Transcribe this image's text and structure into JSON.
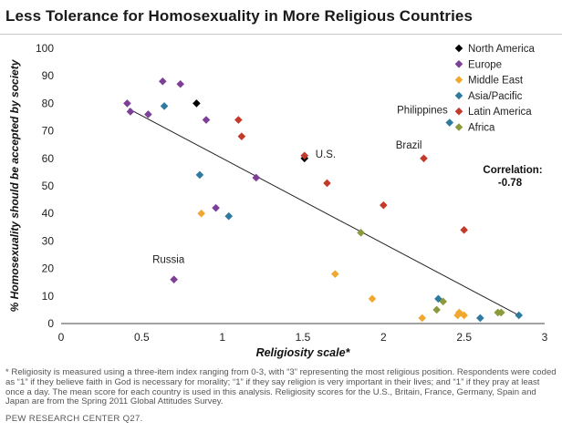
{
  "chart_data": {
    "type": "scatter",
    "title": "Less Tolerance for Homosexuality in More Religious Countries",
    "xlabel": "Religiosity  scale*",
    "ylabel": "% Homosexuality should be accepted by society",
    "xlim": [
      0,
      3
    ],
    "ylim": [
      0,
      100
    ],
    "x_ticks": [
      "0",
      "0.5",
      "1",
      "1.5",
      "2",
      "2.5",
      "3"
    ],
    "y_ticks": [
      "0",
      "10",
      "20",
      "30",
      "40",
      "50",
      "60",
      "70",
      "80",
      "90",
      "100"
    ],
    "grid": false,
    "legend_position": "top-right",
    "series": [
      {
        "name": "North America",
        "color": "#000000",
        "points": [
          [
            0.84,
            80
          ],
          [
            1.51,
            60
          ]
        ]
      },
      {
        "name": "Europe",
        "color": "#7d3f98",
        "points": [
          [
            0.41,
            80
          ],
          [
            0.43,
            77
          ],
          [
            0.54,
            76
          ],
          [
            0.63,
            88
          ],
          [
            0.74,
            87
          ],
          [
            0.9,
            74
          ],
          [
            0.96,
            42
          ],
          [
            1.21,
            53
          ],
          [
            0.7,
            16
          ]
        ]
      },
      {
        "name": "Middle East",
        "color": "#f0a830",
        "points": [
          [
            0.87,
            40
          ],
          [
            1.7,
            18
          ],
          [
            1.93,
            9
          ],
          [
            2.24,
            2
          ],
          [
            2.46,
            3
          ],
          [
            2.47,
            4
          ],
          [
            2.5,
            3
          ]
        ]
      },
      {
        "name": "Asia/Pacific",
        "color": "#2e7aa0",
        "points": [
          [
            0.64,
            79
          ],
          [
            0.86,
            54
          ],
          [
            1.04,
            39
          ],
          [
            2.41,
            73
          ],
          [
            2.34,
            9
          ],
          [
            2.6,
            2
          ],
          [
            2.84,
            3
          ]
        ]
      },
      {
        "name": "Latin America",
        "color": "#c43a2a",
        "points": [
          [
            1.1,
            74
          ],
          [
            1.12,
            68
          ],
          [
            1.51,
            61
          ],
          [
            1.65,
            51
          ],
          [
            2.0,
            43
          ],
          [
            2.25,
            60
          ],
          [
            2.5,
            34
          ]
        ]
      },
      {
        "name": "Africa",
        "color": "#8a9a3c",
        "points": [
          [
            1.86,
            33
          ],
          [
            2.33,
            5
          ],
          [
            2.37,
            8
          ],
          [
            2.71,
            4
          ],
          [
            2.73,
            4
          ]
        ]
      }
    ],
    "trendline": {
      "x": [
        0.42,
        2.84
      ],
      "y": [
        78,
        3
      ]
    },
    "annotations": [
      {
        "text": "Philippines",
        "x": 2.41,
        "y": 73
      },
      {
        "text": "Brazil",
        "x": 2.25,
        "y": 60
      },
      {
        "text": "U.S.",
        "x": 1.51,
        "y": 60
      },
      {
        "text": "Russia",
        "x": 0.7,
        "y": 16
      }
    ],
    "correlation_label": "Correlation:",
    "correlation_value": "-0.78"
  },
  "footnote": "* Religiosity is measured using a three-item index ranging from 0-3, with “3” representing the most religious position. Respondents were coded as “1” if they believe faith in God is necessary for morality; “1” if they say religion is very important in their lives; and “1” if they pray at least once a day. The mean score for each country is used in this analysis. Religiosity scores for the U.S., Britain, France, Germany, Spain and Japan are from the Spring 2011 Global Attitudes Survey.",
  "source": "PEW RESEARCH CENTER Q27."
}
